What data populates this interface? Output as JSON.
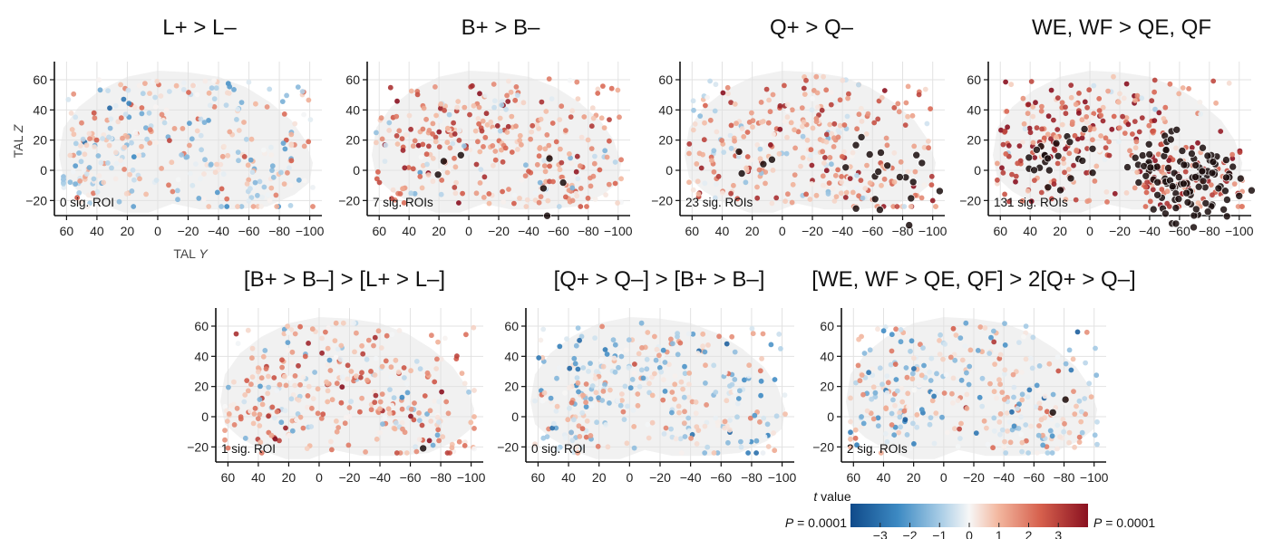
{
  "chart_data": {
    "type": "scatter",
    "xlabel": "TAL Y",
    "ylabel": "TAL Z",
    "xlim": [
      65,
      -105
    ],
    "ylim": [
      -30,
      72
    ],
    "grid": true,
    "x_ticks": [
      "60",
      "40",
      "20",
      "0",
      "−20",
      "−40",
      "−60",
      "−80",
      "−100"
    ],
    "y_ticks": [
      "60",
      "40",
      "20",
      "0",
      "−20"
    ],
    "colormap": "blue-white-red diverging",
    "panels": [
      {
        "title": "L+ > L–",
        "sig_text": "0 sig. ROI",
        "mean_t": -0.1,
        "n_sig": 0,
        "seed": 11
      },
      {
        "title": "B+ > B–",
        "sig_text": "7 sig. ROIs",
        "mean_t": 1.5,
        "n_sig": 7,
        "seed": 23
      },
      {
        "title": "Q+ > Q–",
        "sig_text": "23 sig. ROIs",
        "mean_t": 1.3,
        "n_sig": 23,
        "seed": 37
      },
      {
        "title": "WE, WF > QE, QF",
        "sig_text": "131 sig. ROIs",
        "mean_t": 2.4,
        "n_sig": 131,
        "seed": 53
      },
      {
        "title": "[B+ > B–] > [L+ > L–]",
        "sig_text": "1 sig. ROI",
        "mean_t": 0.9,
        "n_sig": 1,
        "seed": 71
      },
      {
        "title": "[Q+ > Q–] > [B+ > B–]",
        "sig_text": "0 sig. ROI",
        "mean_t": -0.3,
        "n_sig": 0,
        "seed": 89
      },
      {
        "title": "[WE, WF > QE, QF] > 2[Q+ > Q–]",
        "sig_text": "2 sig. ROIs",
        "mean_t": -0.2,
        "n_sig": 2,
        "seed": 97
      }
    ],
    "colorbar": {
      "label_italic": "t",
      "label": " value",
      "ticks": [
        "−3",
        "−2",
        "−1",
        "0",
        "1",
        "2",
        "3"
      ],
      "range": [
        -4,
        4
      ],
      "p_left_italic": "P",
      "p_left": " = 0.0001",
      "p_right_italic": "P",
      "p_right": " = 0.0001"
    },
    "colors": {
      "neg": "#1f5f9e",
      "pos": "#a51a22",
      "sig": "#1a0d0d",
      "brain": "#ececec",
      "grid": "#e2e2e2"
    }
  }
}
